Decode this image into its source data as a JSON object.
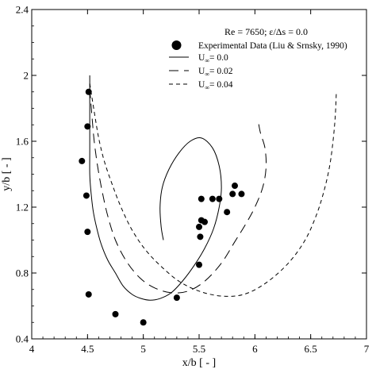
{
  "chart_data": {
    "type": "line",
    "annotation": "Re = 7650; ε/Δs = 0.0",
    "xlabel": "x/b [ - ]",
    "ylabel": "y/b [ - ]",
    "xlim": [
      4,
      7
    ],
    "ylim": [
      0.4,
      2.4
    ],
    "xticks": [
      4,
      4.5,
      5,
      5.5,
      6,
      6.5,
      7
    ],
    "xtick_labels": [
      "4",
      "4.5",
      "5",
      "5.5",
      "6",
      "6.5",
      "7"
    ],
    "yticks": [
      0.4,
      0.8,
      1.2,
      1.6,
      2.0,
      2.4
    ],
    "ytick_labels": [
      "0.4",
      "0.8",
      "1.2",
      "1.6",
      "2",
      "2.4"
    ],
    "grid": false,
    "legend_position": "top-right",
    "series": [
      {
        "name": "Experimental Data (Liu & Srnsky, 1990)",
        "kind": "scatter",
        "marker": "filled-circle",
        "points": [
          [
            4.51,
            1.9
          ],
          [
            4.5,
            1.69
          ],
          [
            4.45,
            1.48
          ],
          [
            4.49,
            1.27
          ],
          [
            4.5,
            1.05
          ],
          [
            4.51,
            0.67
          ],
          [
            4.75,
            0.55
          ],
          [
            5.0,
            0.5
          ],
          [
            5.3,
            0.65
          ],
          [
            5.5,
            0.85
          ],
          [
            5.51,
            1.02
          ],
          [
            5.5,
            1.08
          ],
          [
            5.52,
            1.12
          ],
          [
            5.55,
            1.11
          ],
          [
            5.52,
            1.25
          ],
          [
            5.62,
            1.25
          ],
          [
            5.68,
            1.25
          ],
          [
            5.75,
            1.17
          ],
          [
            5.8,
            1.28
          ],
          [
            5.82,
            1.33
          ],
          [
            5.88,
            1.28
          ]
        ]
      },
      {
        "name": "U∞= 0.0",
        "label_prefix": "U",
        "label_sub": "∞",
        "label_suffix": "= 0.0",
        "kind": "line",
        "dash": "solid",
        "points": [
          [
            4.52,
            2.0
          ],
          [
            4.52,
            1.85
          ],
          [
            4.52,
            1.7
          ],
          [
            4.52,
            1.55
          ],
          [
            4.52,
            1.4
          ],
          [
            4.53,
            1.3
          ],
          [
            4.55,
            1.18
          ],
          [
            4.58,
            1.08
          ],
          [
            4.62,
            0.98
          ],
          [
            4.68,
            0.88
          ],
          [
            4.75,
            0.8
          ],
          [
            4.82,
            0.72
          ],
          [
            4.9,
            0.67
          ],
          [
            4.98,
            0.645
          ],
          [
            5.06,
            0.635
          ],
          [
            5.15,
            0.645
          ],
          [
            5.25,
            0.68
          ],
          [
            5.35,
            0.75
          ],
          [
            5.45,
            0.84
          ],
          [
            5.55,
            0.95
          ],
          [
            5.63,
            1.07
          ],
          [
            5.68,
            1.2
          ],
          [
            5.7,
            1.32
          ],
          [
            5.68,
            1.45
          ],
          [
            5.62,
            1.56
          ],
          [
            5.52,
            1.62
          ],
          [
            5.42,
            1.6
          ],
          [
            5.32,
            1.53
          ],
          [
            5.23,
            1.43
          ],
          [
            5.17,
            1.32
          ],
          [
            5.15,
            1.2
          ],
          [
            5.16,
            1.08
          ],
          [
            5.18,
            1.0
          ]
        ]
      },
      {
        "name": "U∞= 0.02",
        "label_prefix": "U",
        "label_sub": "∞",
        "label_suffix": "= 0.02",
        "kind": "line",
        "dash": "long-dash",
        "points": [
          [
            4.52,
            1.92
          ],
          [
            4.54,
            1.75
          ],
          [
            4.56,
            1.6
          ],
          [
            4.59,
            1.45
          ],
          [
            4.63,
            1.3
          ],
          [
            4.68,
            1.15
          ],
          [
            4.75,
            1.0
          ],
          [
            4.85,
            0.87
          ],
          [
            4.97,
            0.77
          ],
          [
            5.1,
            0.71
          ],
          [
            5.25,
            0.68
          ],
          [
            5.4,
            0.69
          ],
          [
            5.55,
            0.75
          ],
          [
            5.7,
            0.86
          ],
          [
            5.82,
            0.99
          ],
          [
            5.92,
            1.1
          ],
          [
            6.0,
            1.2
          ],
          [
            6.07,
            1.32
          ],
          [
            6.1,
            1.44
          ],
          [
            6.09,
            1.56
          ],
          [
            6.05,
            1.65
          ],
          [
            6.03,
            1.72
          ]
        ]
      },
      {
        "name": "U∞= 0.04",
        "label_prefix": "U",
        "label_sub": "∞",
        "label_suffix": "= 0.04",
        "kind": "line",
        "dash": "short-dash",
        "points": [
          [
            4.52,
            1.95
          ],
          [
            4.56,
            1.78
          ],
          [
            4.6,
            1.62
          ],
          [
            4.65,
            1.48
          ],
          [
            4.72,
            1.34
          ],
          [
            4.8,
            1.2
          ],
          [
            4.9,
            1.06
          ],
          [
            5.02,
            0.94
          ],
          [
            5.16,
            0.84
          ],
          [
            5.32,
            0.75
          ],
          [
            5.5,
            0.69
          ],
          [
            5.7,
            0.66
          ],
          [
            5.9,
            0.67
          ],
          [
            6.1,
            0.74
          ],
          [
            6.3,
            0.86
          ],
          [
            6.45,
            1.0
          ],
          [
            6.55,
            1.15
          ],
          [
            6.62,
            1.3
          ],
          [
            6.67,
            1.45
          ],
          [
            6.7,
            1.6
          ],
          [
            6.72,
            1.75
          ],
          [
            6.73,
            1.9
          ]
        ]
      }
    ]
  }
}
